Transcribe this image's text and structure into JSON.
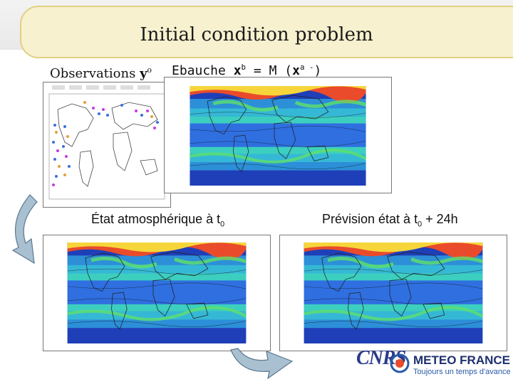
{
  "title": "Initial condition problem",
  "labels": {
    "observations": "Observations ",
    "obs_var": "y",
    "obs_sup": "o",
    "ebauche_prefix": "Ebauche ",
    "xb_var": "x",
    "xb_sup": "b",
    "eq_part": " = M (",
    "xa_var": "x",
    "xa_sup": "a -",
    "close": ")",
    "etat_prefix": "État atmosphérique à t",
    "etat_sub": "0",
    "prev_prefix": "Prévision état à t",
    "prev_sub": "0",
    "prev_suffix": " + 24h"
  },
  "logos": {
    "cnrs": "CNRS",
    "meteo": "METEO FRANCE",
    "meteo_tagline": "Toujours un temps d'avance"
  },
  "colors": {
    "title_fill": "#f7f1cf",
    "title_border": "#e1cf84",
    "arrow": "#9fb7c9"
  }
}
